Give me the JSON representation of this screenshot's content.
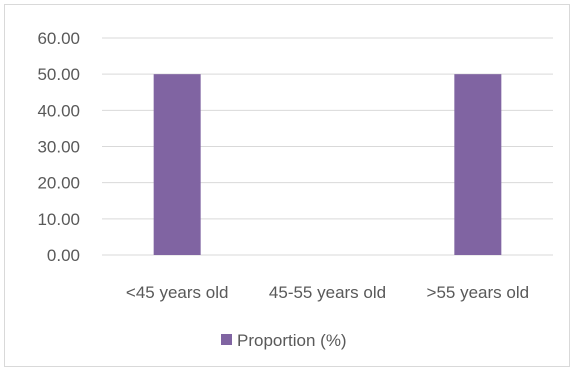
{
  "chart_data": {
    "type": "bar",
    "categories": [
      "<45 years old",
      "45-55 years old",
      ">55 years old"
    ],
    "series": [
      {
        "name": "Proportion (%)",
        "values": [
          50.0,
          0.0,
          50.0
        ],
        "color": "#8064A2"
      }
    ],
    "y_ticks": [
      "0.00",
      "10.00",
      "20.00",
      "30.00",
      "40.00",
      "50.00",
      "60.00"
    ],
    "ylim": [
      0,
      60
    ],
    "grid": true,
    "legend_position": "bottom",
    "colors": {
      "gridline": "#d9d9d9",
      "text": "#595959",
      "border": "#d9d9d9"
    }
  }
}
